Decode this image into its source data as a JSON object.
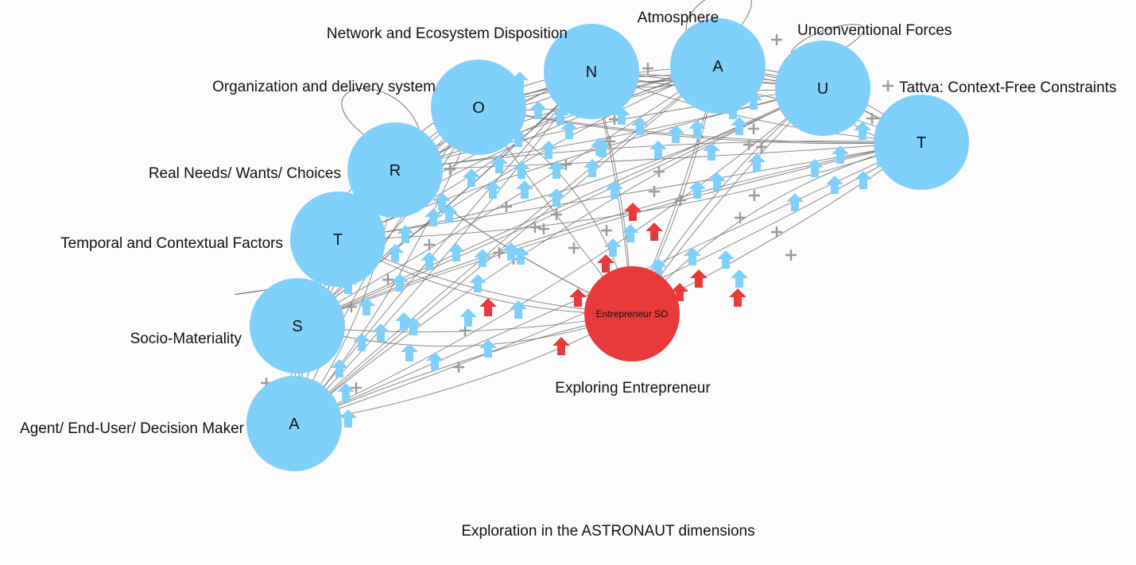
{
  "diagram": {
    "caption": "Exploration in the ASTRONAUT dimensions",
    "center": {
      "label": "Entrepreneur SO",
      "caption": "Exploring Entrepreneur",
      "color": "#e83a3b"
    },
    "node_color": "#80d0fc",
    "arrow_color_blue": "#80d0fc",
    "arrow_color_red": "#e83a3b",
    "edge_color": "#6b6b6b",
    "plus_color": "#9a9a9a",
    "nodes": [
      {
        "id": "A",
        "letter": "A",
        "label": "Agent/ End-User/ Decision Maker"
      },
      {
        "id": "S",
        "letter": "S",
        "label": "Socio-Materiality"
      },
      {
        "id": "T1",
        "letter": "T",
        "label": "Temporal and Contextual Factors"
      },
      {
        "id": "R",
        "letter": "R",
        "label": "Real Needs/ Wants/ Choices"
      },
      {
        "id": "O",
        "letter": "O",
        "label": "Organization and delivery system"
      },
      {
        "id": "N",
        "letter": "N",
        "label": "Network and Ecosystem Disposition"
      },
      {
        "id": "A2",
        "letter": "A",
        "label": "Atmosphere"
      },
      {
        "id": "U",
        "letter": "U",
        "label": "Unconventional Forces"
      },
      {
        "id": "T2",
        "letter": "T",
        "label": "Tattva: Context-Free Constraints"
      }
    ]
  }
}
